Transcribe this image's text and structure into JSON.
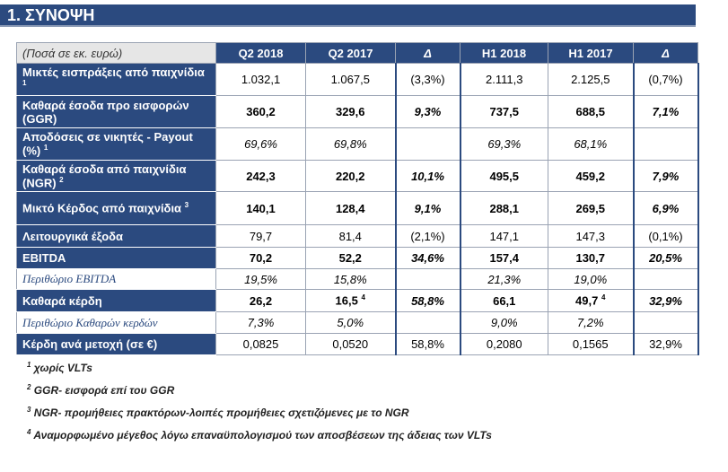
{
  "header": {
    "title": "1. ΣΥΝΟΨΗ"
  },
  "table": {
    "unit_label": "(Ποσά σε εκ. ευρώ)",
    "columns": [
      "Q2 2018",
      "Q2 2017",
      "Δ",
      "H1 2018",
      "H1 2017",
      "Δ"
    ],
    "rows": [
      {
        "label": "Μικτές εισπράξεις από παιχνίδια",
        "note": "1",
        "cells": [
          "1.032,1",
          "1.067,5",
          "(3,3%)",
          "2.111,3",
          "2.125,5",
          "(0,7%)"
        ]
      },
      {
        "label": "Καθαρά έσοδα προ εισφορών (GGR)",
        "cells": [
          "360,2",
          "329,6",
          "9,3%",
          "737,5",
          "688,5",
          "7,1%"
        ]
      },
      {
        "label": "Αποδόσεις σε νικητές - Payout (%)",
        "note": "1",
        "cells": [
          "69,6%",
          "69,8%",
          null,
          "69,3%",
          "68,1%",
          null
        ]
      },
      {
        "label": "Καθαρά έσοδα από παιχνίδια (NGR)",
        "note": "2",
        "cells": [
          "242,3",
          "220,2",
          "10,1%",
          "495,5",
          "459,2",
          "7,9%"
        ]
      },
      {
        "label": "Μικτό Κέρδος από παιχνίδια",
        "note": "3",
        "cells": [
          "140,1",
          "128,4",
          "9,1%",
          "288,1",
          "269,5",
          "6,9%"
        ]
      },
      {
        "label": "Λειτουργικά έξοδα",
        "cells": [
          "79,7",
          "81,4",
          "(2,1%)",
          "147,1",
          "147,3",
          "(0,1%)"
        ]
      },
      {
        "label": "EBITDA",
        "cells": [
          "70,2",
          "52,2",
          "34,6%",
          "157,4",
          "130,7",
          "20,5%"
        ]
      },
      {
        "label": "Περιθώριο EBITDA",
        "cells": [
          "19,5%",
          "15,8%",
          null,
          "21,3%",
          "19,0%",
          null
        ]
      },
      {
        "label": "Καθαρά κέρδη",
        "cells": [
          "26,2",
          "16,5",
          "58,8%",
          "66,1",
          "49,7",
          "32,9%"
        ],
        "cell_notes": {
          "1": "4",
          "4": "4"
        }
      },
      {
        "label": "Περιθώριο Καθαρών κερδών",
        "cells": [
          "7,3%",
          "5,0%",
          null,
          "9,0%",
          "7,2%",
          null
        ]
      },
      {
        "label": "Κέρδη ανά μετοχή (σε €)",
        "cells": [
          "0,0825",
          "0,0520",
          "58,8%",
          "0,2080",
          "0,1565",
          "32,9%"
        ]
      }
    ]
  },
  "footnotes": [
    {
      "mark": "1",
      "text": "χωρίς VLTs"
    },
    {
      "mark": "2",
      "text": "GGR- εισφορά επί του GGR"
    },
    {
      "mark": "3",
      "text": "NGR- προμήθειες πρακτόρων-λοιπές προμήθειες σχετιζόμενες με το NGR"
    },
    {
      "mark": "4",
      "text": "Αναμορφωμένο μέγεθος λόγω επαναϋπολογισμού των αποσβέσεων της άδειας των VLTs"
    }
  ]
}
